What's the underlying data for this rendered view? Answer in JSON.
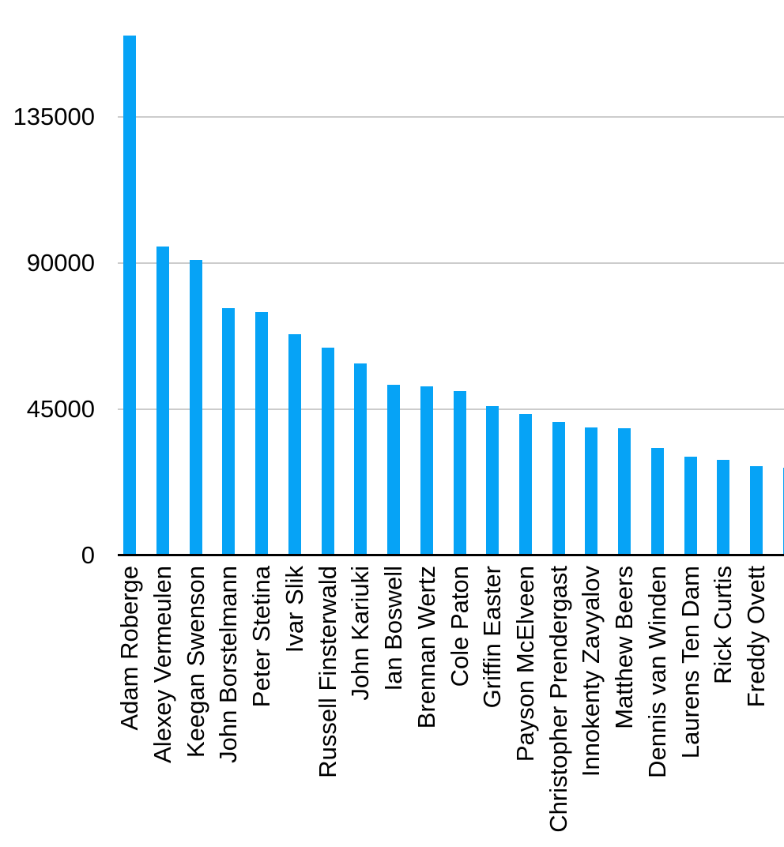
{
  "chart_data": {
    "type": "bar",
    "title": "",
    "xlabel": "",
    "ylabel": "",
    "categories": [
      "Adam Roberge",
      "Alexey Vermeulen",
      "Keegan Swenson",
      "John Borstelmann",
      "Peter Stetina",
      "Ivar Slik",
      "Russell Finsterwald",
      "John Kariuki",
      "Ian Boswell",
      "Brennan Wertz",
      "Cole Paton",
      "Griffin Easter",
      "Payson McElveen",
      "Christopher Prendergast",
      "Innokenty Zavyalov",
      "Matthew Beers",
      "Dennis van Winden",
      "Laurens Ten Dam",
      "Rick Curtis",
      "Freddy Ovett",
      ""
    ],
    "values": [
      160000,
      95000,
      91000,
      76000,
      75000,
      68000,
      64000,
      59000,
      52500,
      52000,
      50500,
      46000,
      43500,
      41000,
      39500,
      39200,
      33000,
      30500,
      29300,
      27500,
      27000
    ],
    "yticks": [
      0,
      45000,
      90000,
      135000
    ],
    "ylim": [
      0,
      170000
    ],
    "grid": "horizontal",
    "legend": "none",
    "colors": {
      "bar": "#06A3F6",
      "gridline": "#CCCCCC",
      "axis": "#000000",
      "text": "#000000",
      "background": "#FFFFFF"
    }
  }
}
